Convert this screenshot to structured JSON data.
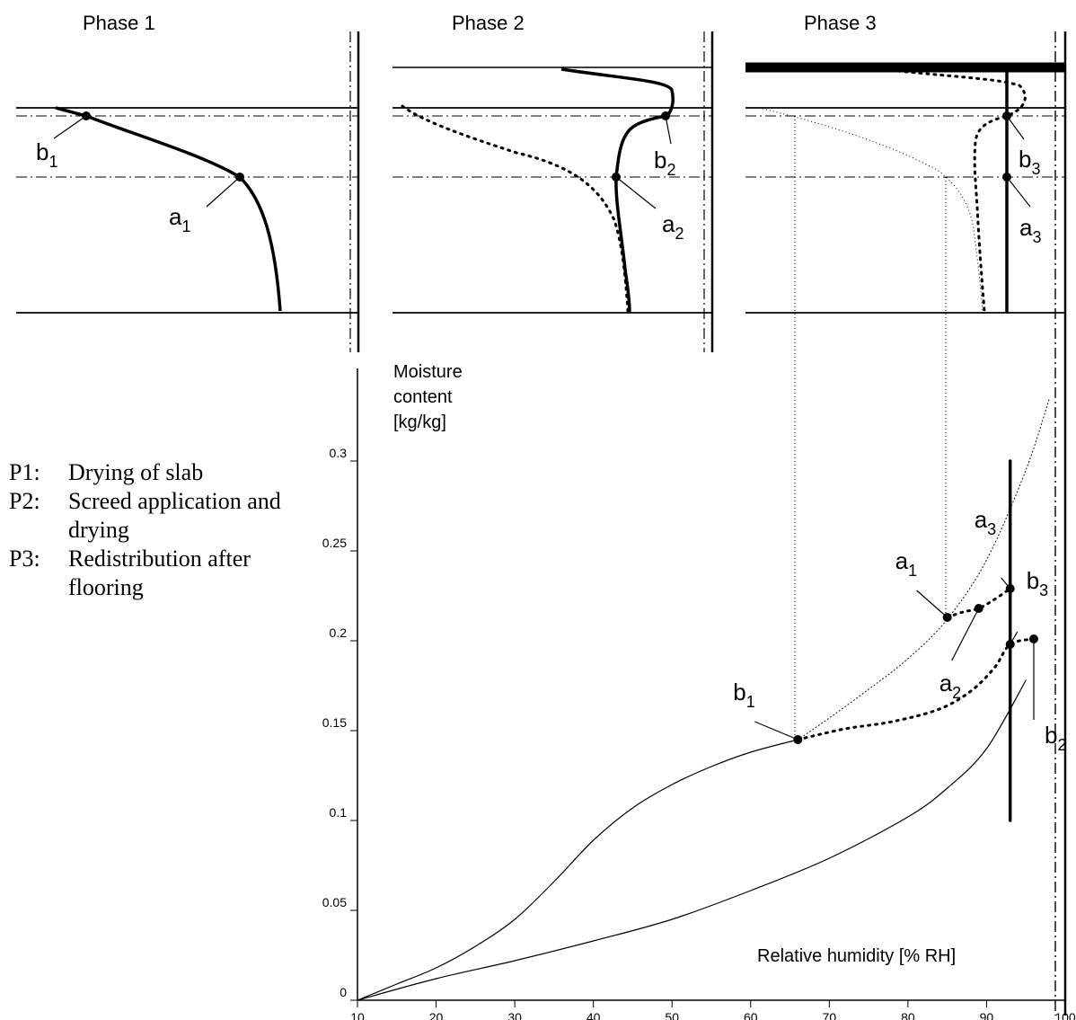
{
  "phases": [
    {
      "title": "Phase 1",
      "labels": [
        "b",
        "1",
        "a",
        "1"
      ]
    },
    {
      "title": "Phase 2",
      "labels": [
        "b",
        "2",
        "a",
        "2"
      ]
    },
    {
      "title": "Phase 3",
      "labels": [
        "b",
        "3",
        "a",
        "3"
      ]
    }
  ],
  "legend": [
    {
      "code": "P1:",
      "text": "Drying of slab"
    },
    {
      "code": "P2:",
      "text": "Screed application and drying"
    },
    {
      "code": "P3:",
      "text": "Redistribution after flooring"
    }
  ],
  "chart_data": {
    "type": "line",
    "ylabel_lines": [
      "Moisture",
      "content",
      "[kg/kg]"
    ],
    "xlabel": "Relative humidity [% RH]",
    "xlim": [
      10,
      100
    ],
    "ylim": [
      0,
      0.35
    ],
    "x_ticks": [
      "10",
      "20",
      "30",
      "40",
      "50",
      "60",
      "70",
      "80",
      "90",
      "100"
    ],
    "y_ticks": [
      "0",
      "0.05",
      "0.1",
      "0.15",
      "0.2",
      "0.25",
      "0.3"
    ],
    "y_tick_values": [
      0,
      0.05,
      0.1,
      0.15,
      0.2,
      0.25,
      0.3
    ],
    "series": [
      {
        "x": [
          10,
          15,
          20,
          25,
          30,
          35,
          40,
          45,
          50,
          55,
          60,
          66
        ],
        "values": [
          0,
          0.009,
          0.018,
          0.03,
          0.045,
          0.066,
          0.089,
          0.107,
          0.12,
          0.13,
          0.138,
          0.145
        ]
      },
      {
        "x": [
          10,
          20,
          30,
          40,
          50,
          60,
          70,
          80,
          85,
          90,
          95
        ],
        "values": [
          0,
          0.012,
          0.022,
          0.033,
          0.045,
          0.061,
          0.079,
          0.102,
          0.118,
          0.14,
          0.178
        ]
      },
      {
        "x": [
          66,
          70,
          75,
          80,
          85,
          90,
          95,
          98
        ],
        "values": [
          0.145,
          0.157,
          0.173,
          0.19,
          0.212,
          0.245,
          0.295,
          0.335
        ]
      },
      {
        "x": [
          66,
          72,
          78,
          84,
          88,
          91,
          93,
          96
        ],
        "values": [
          0.145,
          0.151,
          0.155,
          0.162,
          0.172,
          0.185,
          0.198,
          0.201
        ]
      },
      {
        "x": [
          85,
          87,
          89,
          91,
          93
        ],
        "values": [
          0.213,
          0.216,
          0.218,
          0.223,
          0.229
        ]
      },
      {
        "x": [
          93,
          93
        ],
        "values": [
          0.1,
          0.3
        ]
      }
    ],
    "points": [
      {
        "label": "b",
        "sub": "1",
        "x": 66,
        "y": 0.145
      },
      {
        "label": "a",
        "sub": "1",
        "x": 85,
        "y": 0.213
      },
      {
        "label": "a",
        "sub": "2",
        "x": 89,
        "y": 0.218
      },
      {
        "label": "a",
        "sub": "3",
        "x": 93,
        "y": 0.229
      },
      {
        "label": "b",
        "sub": "3",
        "x": 93,
        "y": 0.198
      },
      {
        "label": "b",
        "sub": "2",
        "x": 96,
        "y": 0.201
      }
    ]
  }
}
